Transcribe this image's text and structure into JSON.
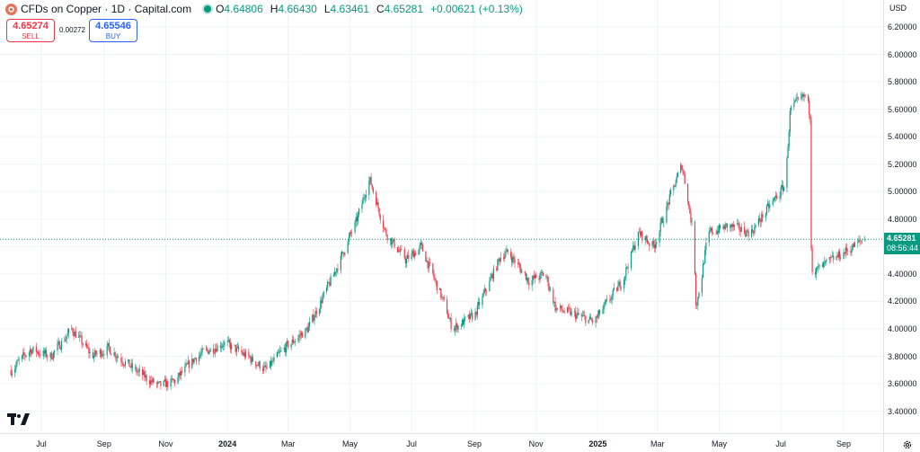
{
  "legend": {
    "title": "CFDs on Copper · 1D · Capital.com",
    "open_label": "O",
    "open": "4.64806",
    "high_label": "H",
    "high": "4.66430",
    "low_label": "L",
    "low": "4.63461",
    "close_label": "C",
    "close": "4.65281",
    "change": "+0.00621 (+0.13%)"
  },
  "trade": {
    "sell_price": "4.65274",
    "sell_label": "SELL",
    "spread": "0.00272",
    "buy_price": "4.65546",
    "buy_label": "BUY"
  },
  "current_price": {
    "price": "4.65281",
    "countdown": "08:56:44"
  },
  "icons": [
    "capital-logo-icon",
    "tradingview-logo-icon",
    "gear-icon"
  ],
  "colors": {
    "up": "#089981",
    "down": "#f23645",
    "grid": "#f0f3fa",
    "price_line": "#089981"
  },
  "chart_data": {
    "type": "candlestick",
    "y_axis": {
      "currency": "USD",
      "ylim": [
        3.3,
        6.25
      ],
      "ticks": [
        "6.20000",
        "6.00000",
        "5.80000",
        "5.60000",
        "5.40000",
        "5.20000",
        "5.00000",
        "4.80000",
        "4.60000",
        "4.40000",
        "4.20000",
        "4.00000",
        "3.80000",
        "3.60000",
        "3.40000"
      ],
      "position": "right"
    },
    "x_axis": {
      "ticks": [
        {
          "label": "Jul",
          "date": "2023-07"
        },
        {
          "label": "Sep",
          "date": "2023-09"
        },
        {
          "label": "Nov",
          "date": "2023-11"
        },
        {
          "label": "2024",
          "date": "2024-01",
          "bold": true
        },
        {
          "label": "Mar",
          "date": "2024-03"
        },
        {
          "label": "May",
          "date": "2024-05"
        },
        {
          "label": "Jul",
          "date": "2024-07"
        },
        {
          "label": "Sep",
          "date": "2024-09"
        },
        {
          "label": "Nov",
          "date": "2024-11"
        },
        {
          "label": "2025",
          "date": "2025-01",
          "bold": true
        },
        {
          "label": "Mar",
          "date": "2025-03"
        },
        {
          "label": "May",
          "date": "2025-05"
        },
        {
          "label": "Jul",
          "date": "2025-07"
        },
        {
          "label": "Sep",
          "date": "2025-09"
        }
      ]
    },
    "grid": true,
    "current_price_line": 4.65281,
    "trend": [
      [
        "2023-06-01",
        3.7
      ],
      [
        "2023-06-20",
        3.85
      ],
      [
        "2023-07-10",
        3.8
      ],
      [
        "2023-07-31",
        4.0
      ],
      [
        "2023-08-20",
        3.8
      ],
      [
        "2023-09-05",
        3.86
      ],
      [
        "2023-10-01",
        3.7
      ],
      [
        "2023-10-25",
        3.58
      ],
      [
        "2023-11-10",
        3.62
      ],
      [
        "2023-12-01",
        3.8
      ],
      [
        "2023-12-28",
        3.9
      ],
      [
        "2024-01-20",
        3.8
      ],
      [
        "2024-02-08",
        3.7
      ],
      [
        "2024-02-25",
        3.85
      ],
      [
        "2024-03-20",
        4.0
      ],
      [
        "2024-04-15",
        4.4
      ],
      [
        "2024-05-08",
        4.8
      ],
      [
        "2024-05-20",
        5.1
      ],
      [
        "2024-06-05",
        4.7
      ],
      [
        "2024-06-25",
        4.5
      ],
      [
        "2024-07-10",
        4.6
      ],
      [
        "2024-08-01",
        4.2
      ],
      [
        "2024-08-10",
        4.0
      ],
      [
        "2024-09-01",
        4.1
      ],
      [
        "2024-09-28",
        4.55
      ],
      [
        "2024-10-05",
        4.55
      ],
      [
        "2024-10-25",
        4.35
      ],
      [
        "2024-11-10",
        4.4
      ],
      [
        "2024-11-20",
        4.15
      ],
      [
        "2024-12-10",
        4.1
      ],
      [
        "2024-12-28",
        4.05
      ],
      [
        "2025-01-25",
        4.35
      ],
      [
        "2025-02-10",
        4.7
      ],
      [
        "2025-02-25",
        4.6
      ],
      [
        "2025-03-15",
        5.0
      ],
      [
        "2025-03-25",
        5.2
      ],
      [
        "2025-04-05",
        4.7
      ],
      [
        "2025-04-08",
        4.15
      ],
      [
        "2025-04-20",
        4.7
      ],
      [
        "2025-05-10",
        4.75
      ],
      [
        "2025-06-01",
        4.7
      ],
      [
        "2025-06-20",
        4.9
      ],
      [
        "2025-07-05",
        5.05
      ],
      [
        "2025-07-10",
        5.6
      ],
      [
        "2025-07-25",
        5.7
      ],
      [
        "2025-07-30",
        5.55
      ],
      [
        "2025-07-31",
        4.4
      ],
      [
        "2025-08-20",
        4.5
      ],
      [
        "2025-09-10",
        4.6
      ],
      [
        "2025-09-20",
        4.65
      ]
    ]
  },
  "x_date_range": [
    "2023-06-01",
    "2025-09-25"
  ]
}
